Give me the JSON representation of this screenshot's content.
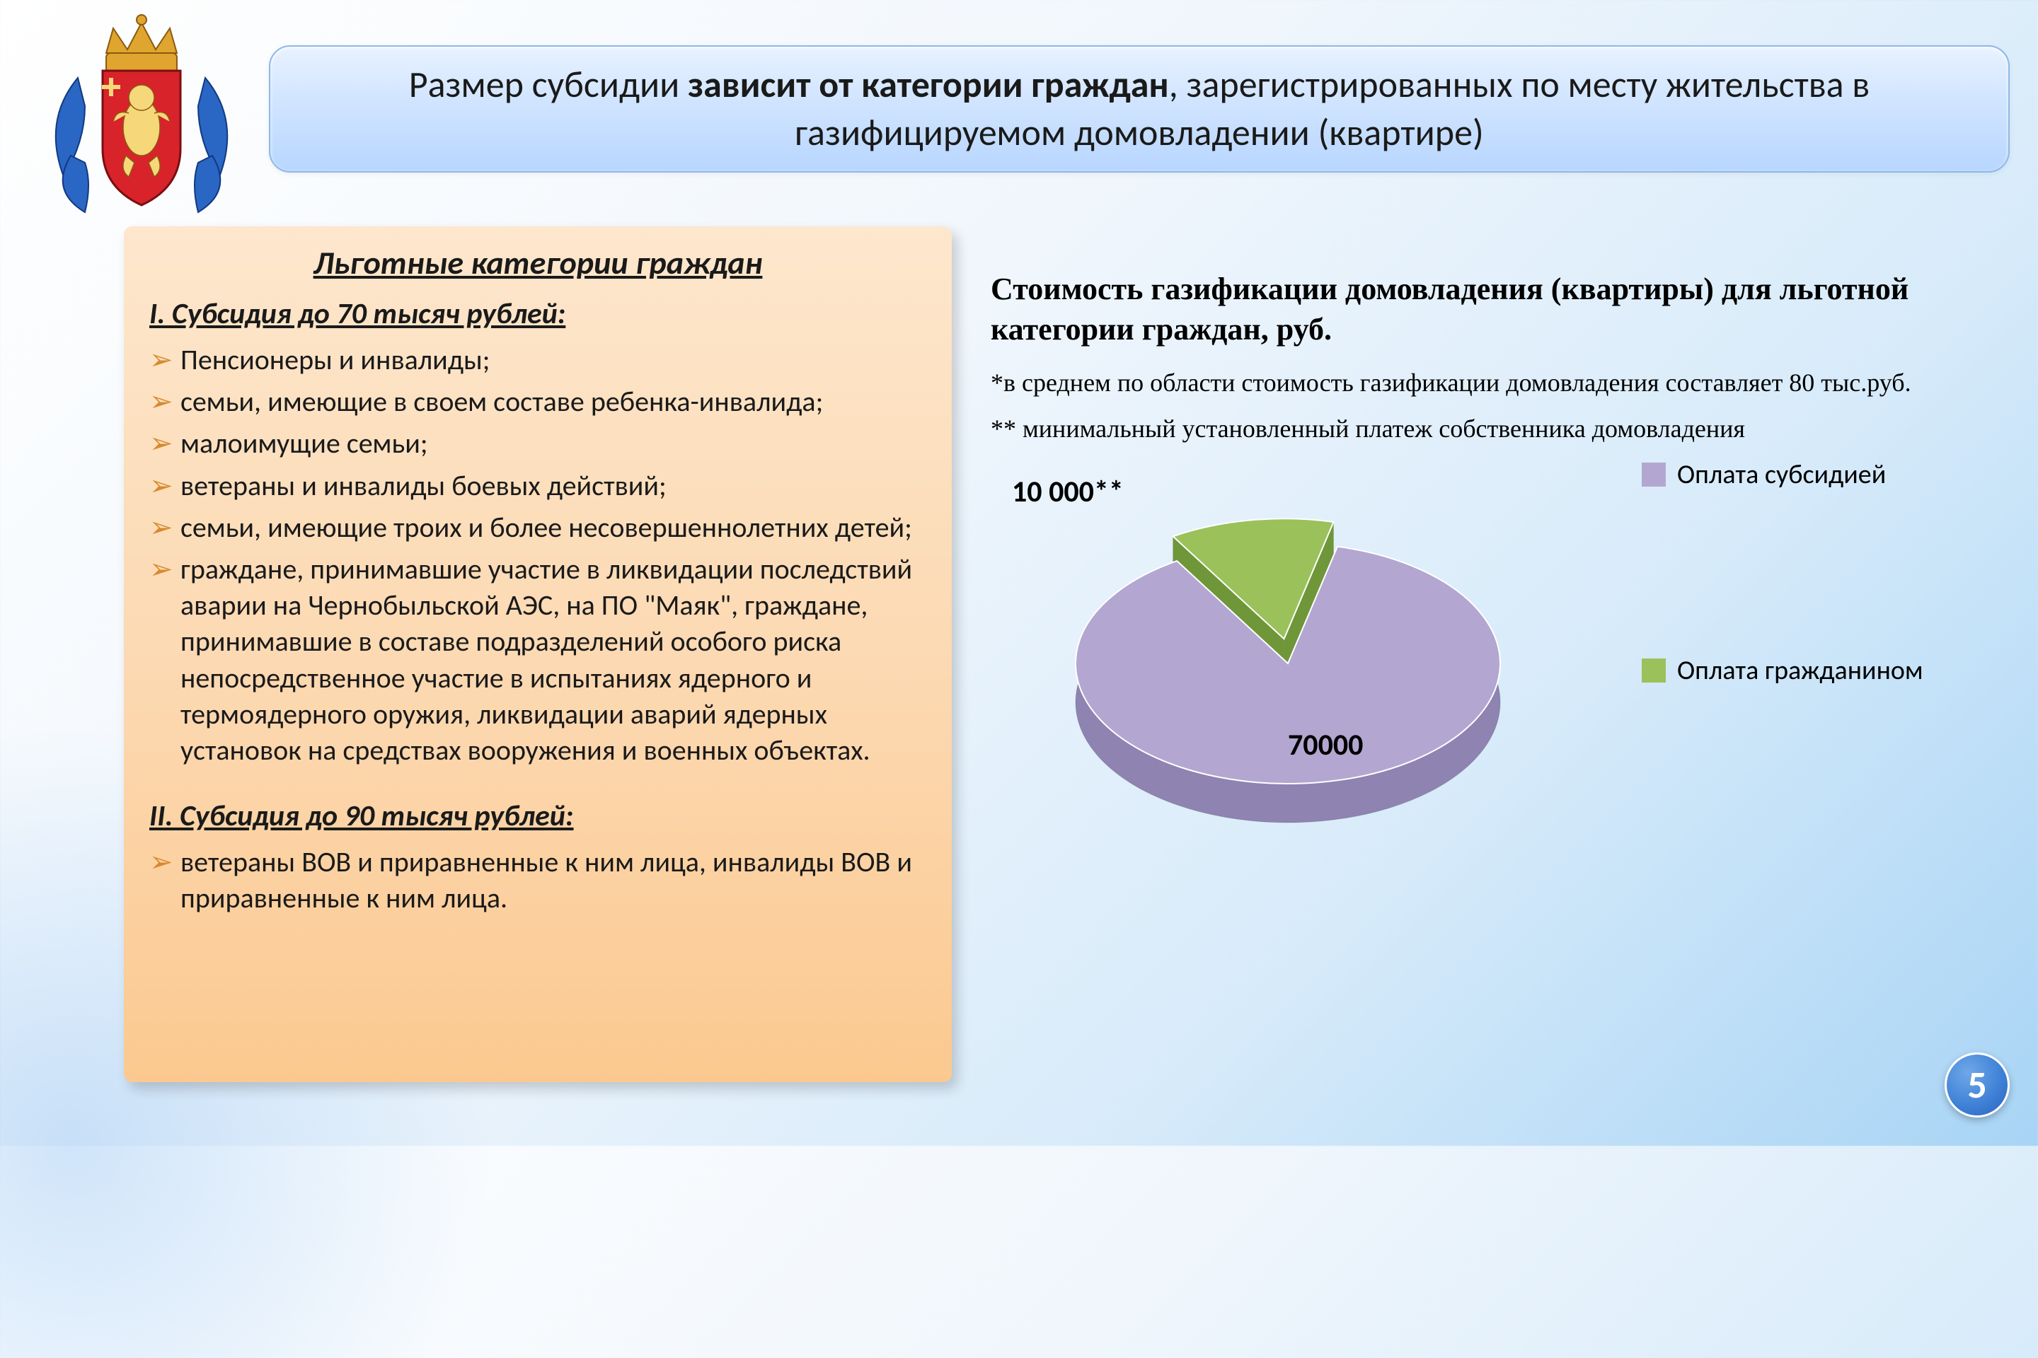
{
  "header": {
    "title_pre": "Размер субсидии ",
    "title_bold": "зависит от категории граждан",
    "title_post": ", зарегистрированных по месту жительства в газифицируемом домовладении (квартире)"
  },
  "categories": {
    "heading": "Льготные  категории граждан",
    "section1_title": "I. Субсидия до 70 тысяч рублей:",
    "section1_items": [
      "Пенсионеры и инвалиды;",
      "семьи, имеющие  в своем составе ребенка-инвалида;",
      "малоимущие семьи;",
      "ветераны  и инвалиды боевых действий;",
      "семьи, имеющие троих и более несовершеннолетних детей;",
      "граждане, принимавшие участие в ликвидации последствий аварии на Чернобыльской АЭС, на  ПО \"Маяк\", граждане, принимавшие в составе подразделений особого риска непосредственное участие в испытаниях ядерного и термоядерного оружия, ликвидации аварий ядерных установок на средствах вооружения и военных объектах."
    ],
    "section2_title": "II. Субсидия до 90 тысяч рублей:",
    "section2_items": [
      "ветераны ВОВ и приравненные к ним лица, инвалиды ВОВ и приравненные к ним лица."
    ]
  },
  "chart": {
    "title": "Стоимость газификации домовладения (квартиры)  для льготной категории граждан, руб.",
    "note1": "*в среднем по области стоимость газификации домовладения составляет 80 тыс.руб.",
    "note2": "** минимальный установленный платеж собственника домовладения",
    "type": "pie3d",
    "slices": [
      {
        "label": "Оплата субсидией",
        "value": 70000,
        "value_display": "70000",
        "color": "#b3a7d1",
        "side_color": "#8f83b1"
      },
      {
        "label": "Оплата гражданином",
        "value": 10000,
        "value_display": "10 000**",
        "color": "#9bc15a",
        "side_color": "#6f9638"
      }
    ],
    "legend_swatch_colors": [
      "#b3a7d1",
      "#9bc15a"
    ],
    "background_color": "#ffffff00",
    "label_fontsize": 42,
    "legend_fontsize": 38
  },
  "coat_of_arms": {
    "shield_color": "#d8232a",
    "crown_color": "#e0a52e",
    "mantling_color": "#2a66c4",
    "lion_color": "#f6d77a"
  },
  "page_number": "5",
  "colors": {
    "banner_border": "#8fb8e8",
    "panel_bullet": "#d78a2e",
    "pagenum_bg": "#3d7fd6"
  }
}
